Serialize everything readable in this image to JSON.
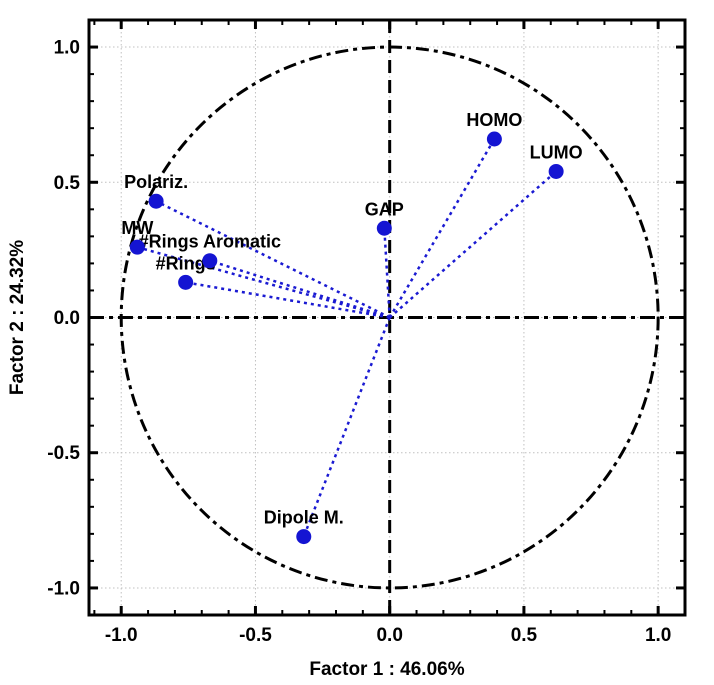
{
  "chart_data": {
    "type": "scatter",
    "subtype": "pca-factor-loadings-unit-circle",
    "title": "",
    "xlabel": "Factor 1 : 46.06%",
    "ylabel": "Factor 2 : 24.32%",
    "xlim": [
      -1.12,
      1.1
    ],
    "ylim": [
      -1.1,
      1.1
    ],
    "xticks": [
      -1.0,
      -0.5,
      0.0,
      0.5,
      1.0
    ],
    "yticks": [
      -1.0,
      -0.5,
      0.0,
      0.5,
      1.0
    ],
    "xtick_labels": [
      "-1.0",
      "-0.5",
      "0.0",
      "0.5",
      "1.0"
    ],
    "ytick_labels": [
      "-1.0",
      "-0.5",
      "0.0",
      "0.5",
      "1.0"
    ],
    "minor_tick_step": 0.1,
    "grid": true,
    "legend": "none",
    "unit_circle": true,
    "zero_axes": true,
    "points": [
      {
        "label": "Polariz.",
        "x": -0.87,
        "y": 0.43
      },
      {
        "label": "MW",
        "x": -0.94,
        "y": 0.26
      },
      {
        "label": "#Rings Aromatic",
        "x": -0.67,
        "y": 0.21
      },
      {
        "label": "#Rings",
        "x": -0.76,
        "y": 0.13
      },
      {
        "label": "GAP",
        "x": -0.02,
        "y": 0.33
      },
      {
        "label": "HOMO",
        "x": 0.39,
        "y": 0.66
      },
      {
        "label": "LUMO",
        "x": 0.62,
        "y": 0.54
      },
      {
        "label": "Dipole M.",
        "x": -0.32,
        "y": -0.81
      }
    ],
    "colors": {
      "point": "#1414d2",
      "ray": "#1a1ad2",
      "frame": "#000000",
      "grid": "#c0c0c0",
      "background": "#ffffff"
    }
  }
}
